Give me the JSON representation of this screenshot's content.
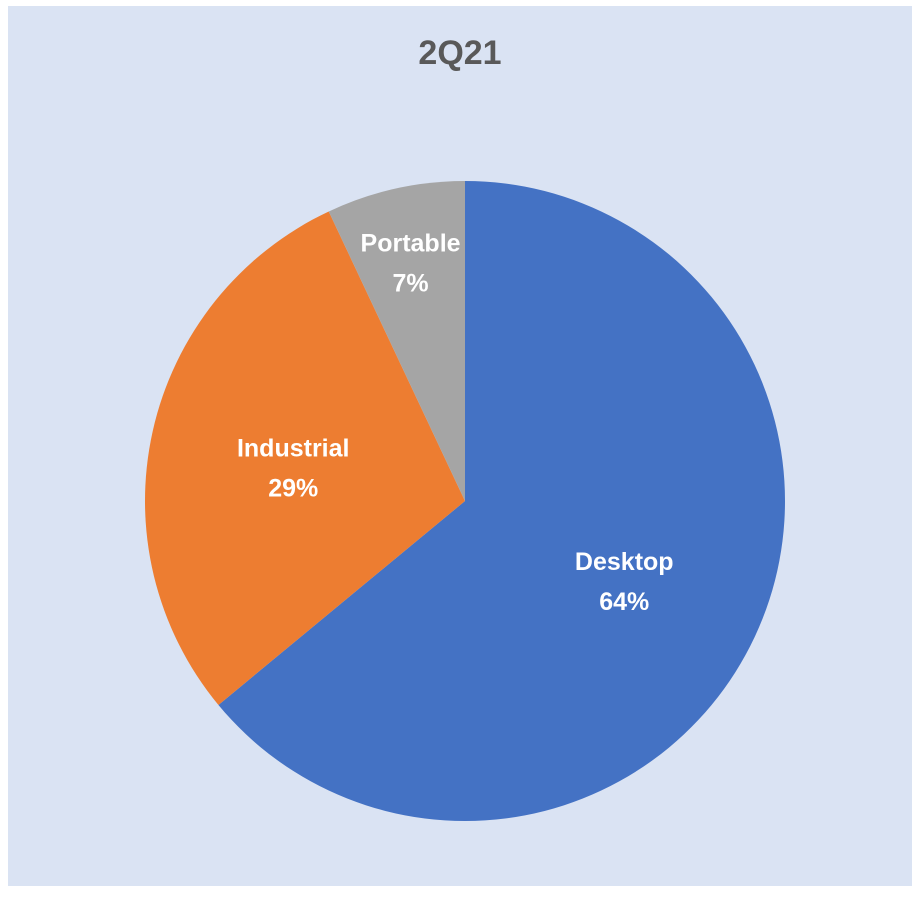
{
  "chart_data": {
    "type": "pie",
    "title": "2Q21",
    "slices": [
      {
        "label": "Desktop",
        "value": 64,
        "value_label": "64%",
        "color": "#4472c4"
      },
      {
        "label": "Industrial",
        "value": 29,
        "value_label": "29%",
        "color": "#ed7d31"
      },
      {
        "label": "Portable",
        "value": 7,
        "value_label": "7%",
        "color": "#a5a5a5"
      }
    ],
    "start": "12 o'clock",
    "direction": "clockwise",
    "legend": "none",
    "data_labels": "category name and percentage inside slices",
    "background_color": "#dae3f3"
  }
}
